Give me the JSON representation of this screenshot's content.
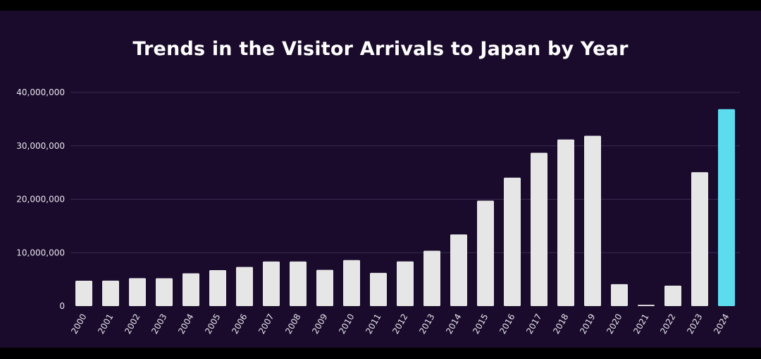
{
  "chart_data": {
    "type": "bar",
    "title": "Trends in the Visitor Arrivals to Japan by Year",
    "categories": [
      "2000",
      "2001",
      "2002",
      "2003",
      "2004",
      "2005",
      "2006",
      "2007",
      "2008",
      "2009",
      "2010",
      "2011",
      "2012",
      "2013",
      "2014",
      "2015",
      "2016",
      "2017",
      "2018",
      "2019",
      "2020",
      "2021",
      "2022",
      "2023",
      "2024"
    ],
    "values": [
      4757146,
      4771555,
      5238963,
      5211725,
      6137905,
      6727926,
      7334077,
      8346969,
      8350835,
      6789658,
      8611175,
      6218752,
      8358105,
      10363904,
      13413467,
      19737409,
      24039700,
      28691073,
      31191856,
      31882049,
      4115828,
      245862,
      3832110,
      25066350,
      36870148
    ],
    "ylim": [
      0,
      40000000
    ],
    "yticks": [
      0,
      10000000,
      20000000,
      30000000,
      40000000
    ],
    "ytick_labels": [
      "0",
      "10,000,000",
      "20,000,000",
      "30,000,000",
      "40,000,000"
    ],
    "grid": true,
    "bar_color": "#e6e6e6",
    "highlight_color": "#5ddcf0",
    "highlight_category": "2024"
  }
}
